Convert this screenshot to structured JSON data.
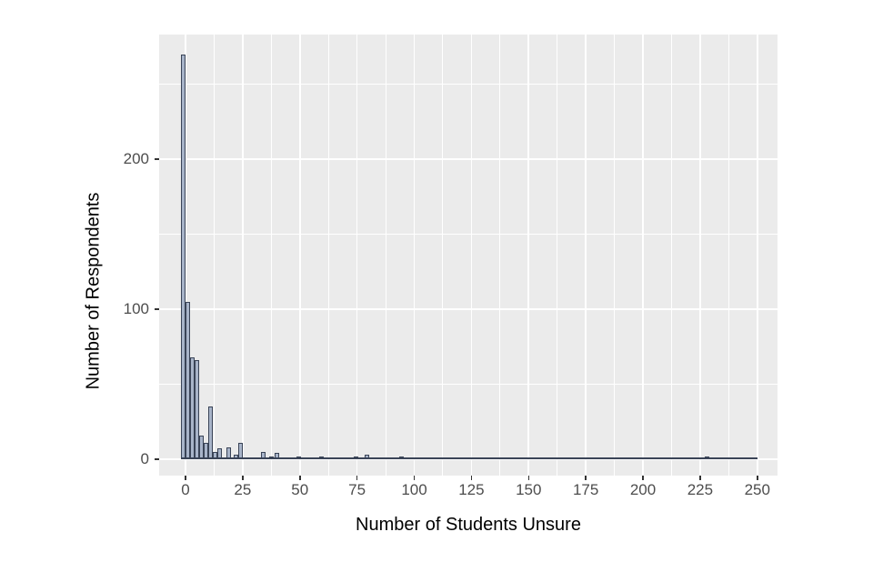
{
  "chart_data": {
    "type": "bar",
    "subtype": "histogram",
    "title": "",
    "xlabel": "Number of Students Unsure",
    "ylabel": "Number of Respondents",
    "x_ticks": [
      0,
      25,
      50,
      75,
      100,
      125,
      150,
      175,
      200,
      225,
      250
    ],
    "y_ticks": [
      0,
      100,
      200
    ],
    "xlim": [
      -11.5,
      259
    ],
    "ylim": [
      -11,
      283
    ],
    "binwidth": 2,
    "grid": "on",
    "legend": "none",
    "baseline_extent": [
      -2,
      250
    ],
    "bars": [
      {
        "x": -2,
        "count": 270
      },
      {
        "x": 0,
        "count": 105
      },
      {
        "x": 2,
        "count": 68
      },
      {
        "x": 4,
        "count": 66
      },
      {
        "x": 6,
        "count": 16
      },
      {
        "x": 8,
        "count": 11
      },
      {
        "x": 10,
        "count": 35
      },
      {
        "x": 12,
        "count": 5
      },
      {
        "x": 14,
        "count": 7
      },
      {
        "x": 18,
        "count": 8
      },
      {
        "x": 21,
        "count": 3
      },
      {
        "x": 23,
        "count": 11
      },
      {
        "x": 33,
        "count": 5
      },
      {
        "x": 36.5,
        "count": 2
      },
      {
        "x": 39,
        "count": 4
      },
      {
        "x": 48.5,
        "count": 2
      },
      {
        "x": 58.5,
        "count": 2
      },
      {
        "x": 73.5,
        "count": 2
      },
      {
        "x": 78.5,
        "count": 3
      },
      {
        "x": 93.5,
        "count": 2
      },
      {
        "x": 227,
        "count": 2
      }
    ],
    "colors": {
      "panel_background": "#ebebeb",
      "gridline": "#ffffff",
      "bar_fill": "#a8b4c9",
      "bar_stroke": "#3a4457",
      "tick_label": "#4d4d4d",
      "axis_title": "#000000"
    }
  }
}
